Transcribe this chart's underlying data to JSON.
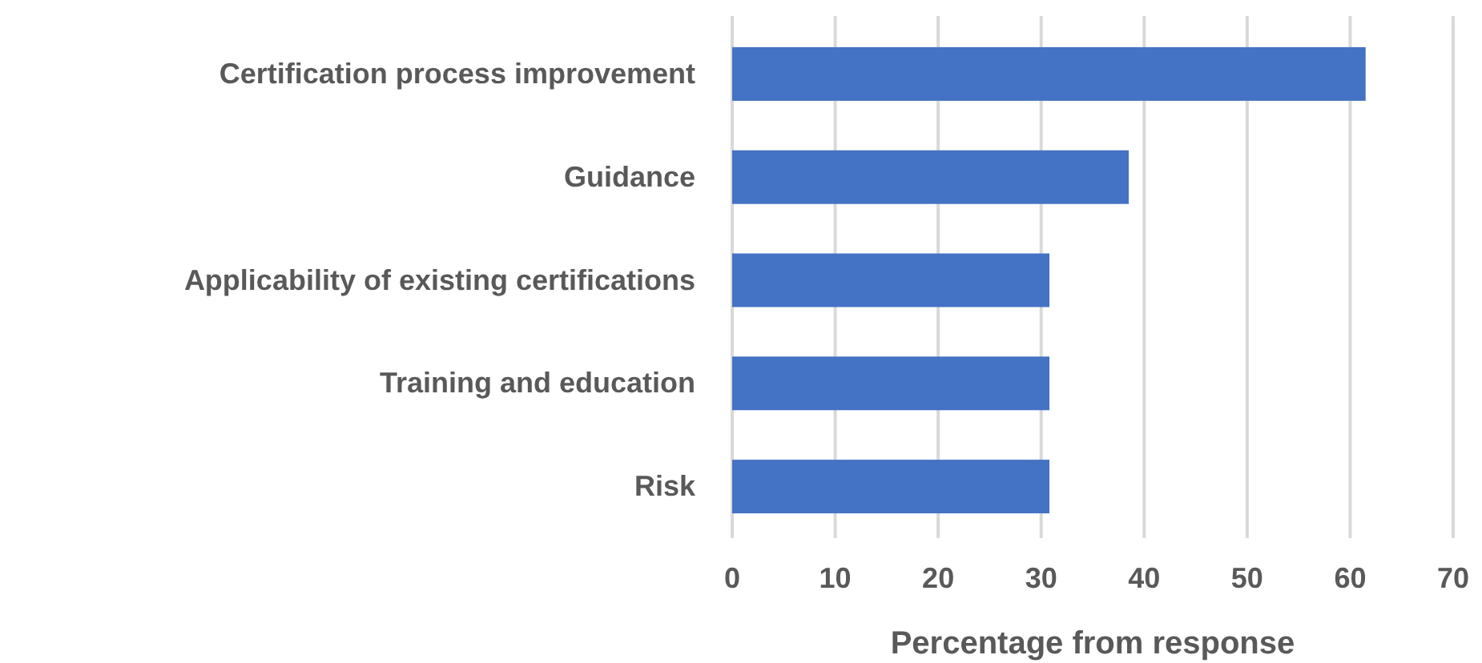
{
  "chart_data": {
    "type": "bar",
    "orientation": "horizontal",
    "categories": [
      "Certification process improvement",
      "Guidance",
      "Applicability of existing certifications",
      "Training and education",
      "Risk"
    ],
    "values": [
      61.5,
      38.5,
      30.8,
      30.8,
      30.8
    ],
    "color": "#4472c4",
    "xlabel": "Percentage from response",
    "xlim": [
      0,
      70
    ],
    "xticks": [
      0,
      10,
      20,
      30,
      40,
      50,
      60,
      70
    ],
    "grid": "x"
  }
}
